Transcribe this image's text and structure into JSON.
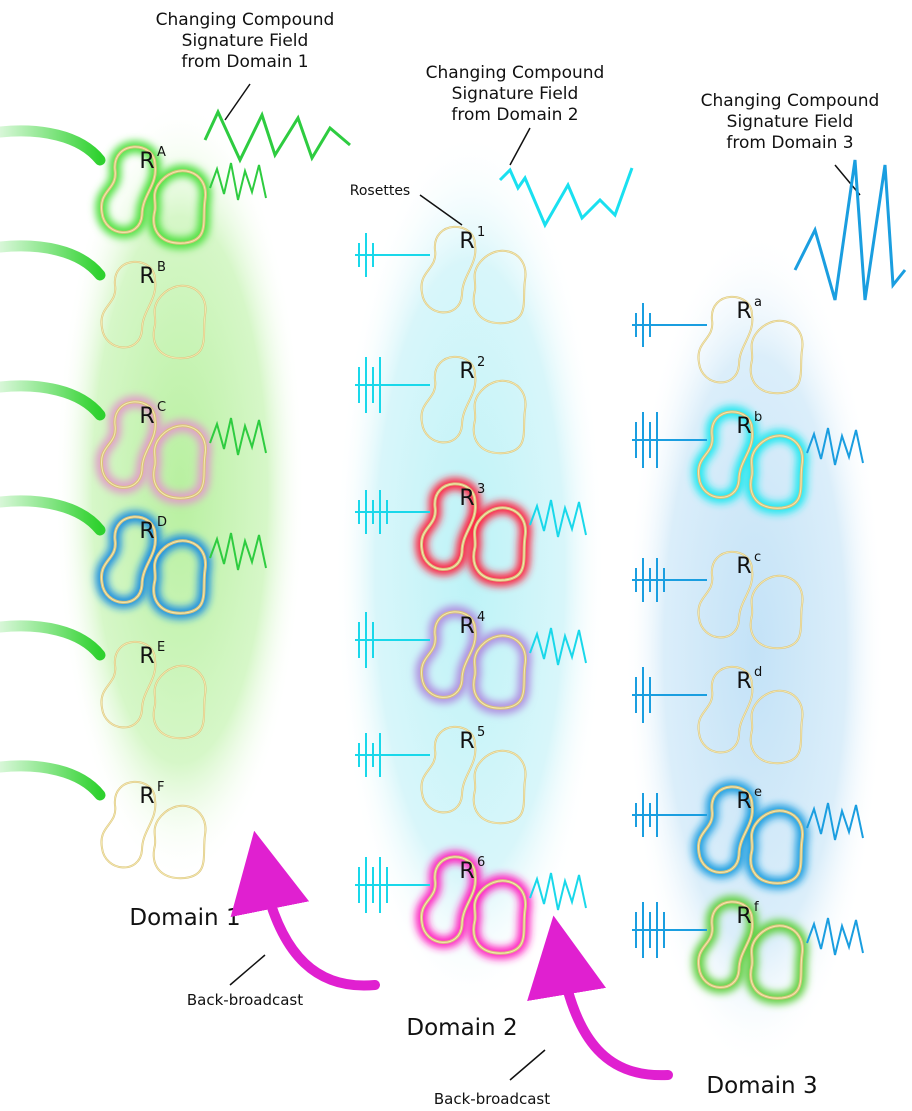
{
  "domains": [
    {
      "name": "Domain 1",
      "field_label": [
        "Changing Compound",
        "Signature Field",
        "from Domain 1"
      ],
      "rosettes": [
        {
          "base": "R",
          "sup": "A"
        },
        {
          "base": "R",
          "sup": "B"
        },
        {
          "base": "R",
          "sup": "C"
        },
        {
          "base": "R",
          "sup": "D"
        },
        {
          "base": "R",
          "sup": "E"
        },
        {
          "base": "R",
          "sup": "F"
        }
      ]
    },
    {
      "name": "Domain 2",
      "field_label": [
        "Changing Compound",
        "Signature Field",
        "from Domain 2"
      ],
      "rosettes": [
        {
          "base": "R",
          "sup": "1"
        },
        {
          "base": "R",
          "sup": "2"
        },
        {
          "base": "R",
          "sup": "3"
        },
        {
          "base": "R",
          "sup": "4"
        },
        {
          "base": "R",
          "sup": "5"
        },
        {
          "base": "R",
          "sup": "6"
        }
      ]
    },
    {
      "name": "Domain 3",
      "field_label": [
        "Changing Compound",
        "Signature Field",
        "from Domain 3"
      ],
      "rosettes": [
        {
          "base": "R",
          "sup": "a"
        },
        {
          "base": "R",
          "sup": "b"
        },
        {
          "base": "R",
          "sup": "c"
        },
        {
          "base": "R",
          "sup": "d"
        },
        {
          "base": "R",
          "sup": "e"
        },
        {
          "base": "R",
          "sup": "f"
        }
      ]
    }
  ],
  "rosettes_label": "Rosettes",
  "back_broadcast": [
    "Back-broadcast",
    "Back-broadcast"
  ]
}
